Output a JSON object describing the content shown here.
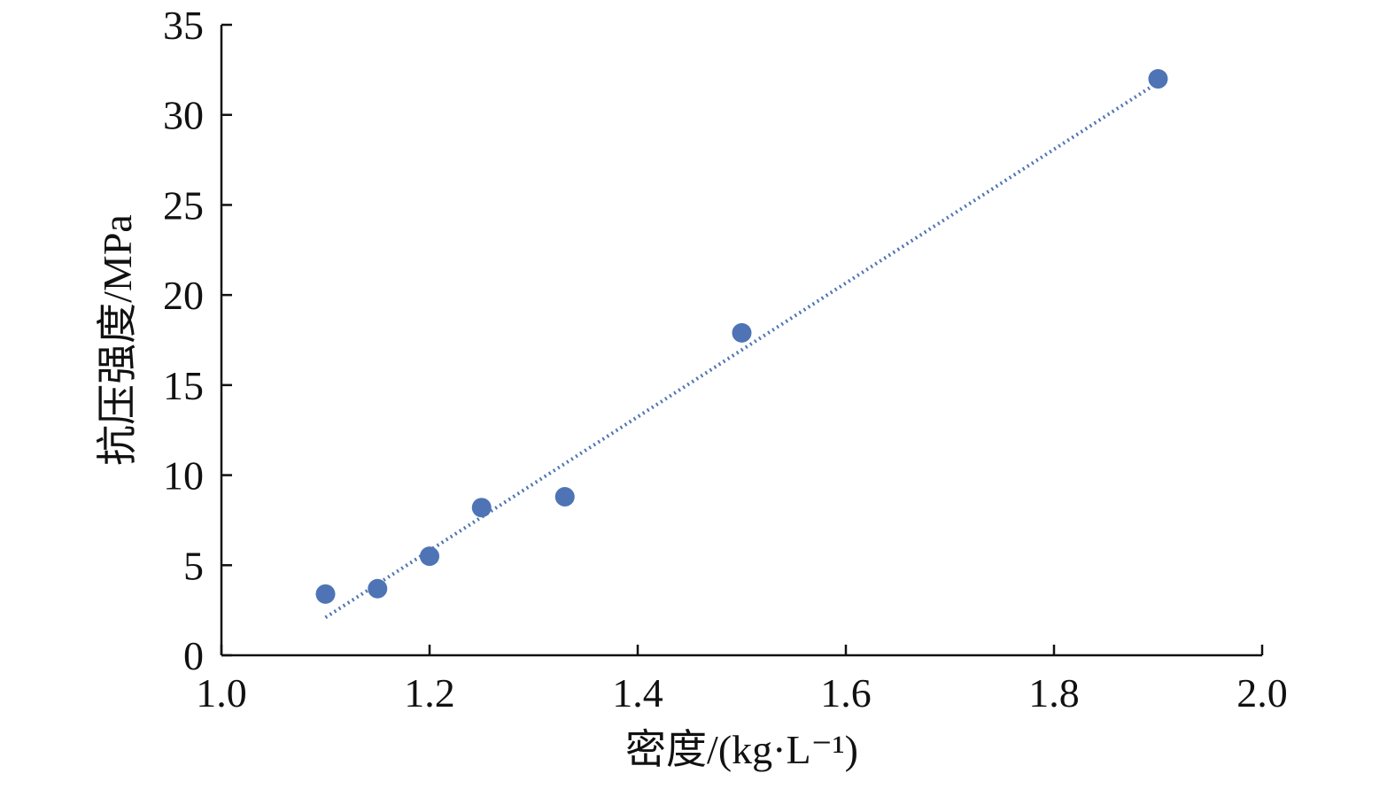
{
  "chart_data": {
    "type": "scatter",
    "xlabel": "密度/(kg·L⁻¹)",
    "ylabel": "抗压强度/MPa",
    "xlim": [
      1.0,
      2.0
    ],
    "ylim": [
      0,
      35
    ],
    "x_ticks": [
      1.0,
      1.2,
      1.4,
      1.6,
      1.8,
      2.0
    ],
    "x_tick_labels": [
      "1.0",
      "1.2",
      "1.4",
      "1.6",
      "1.8",
      "2.0"
    ],
    "y_ticks": [
      0,
      5,
      10,
      15,
      20,
      25,
      30,
      35
    ],
    "y_tick_labels": [
      "0",
      "5",
      "10",
      "15",
      "20",
      "25",
      "30",
      "35"
    ],
    "grid": false,
    "legend": "none",
    "series": [
      {
        "points": [
          {
            "x": 1.1,
            "y": 3.4
          },
          {
            "x": 1.15,
            "y": 3.7
          },
          {
            "x": 1.2,
            "y": 5.5
          },
          {
            "x": 1.25,
            "y": 8.2
          },
          {
            "x": 1.33,
            "y": 8.8
          },
          {
            "x": 1.5,
            "y": 17.9
          },
          {
            "x": 1.9,
            "y": 32.0
          }
        ],
        "color": "#4f74b5"
      }
    ],
    "trendline": {
      "style": "dotted",
      "color": "#4f74b5",
      "start": {
        "x": 1.1,
        "y": 2.1
      },
      "end": {
        "x": 1.9,
        "y": 31.8
      }
    },
    "axis_color": "#111111"
  }
}
